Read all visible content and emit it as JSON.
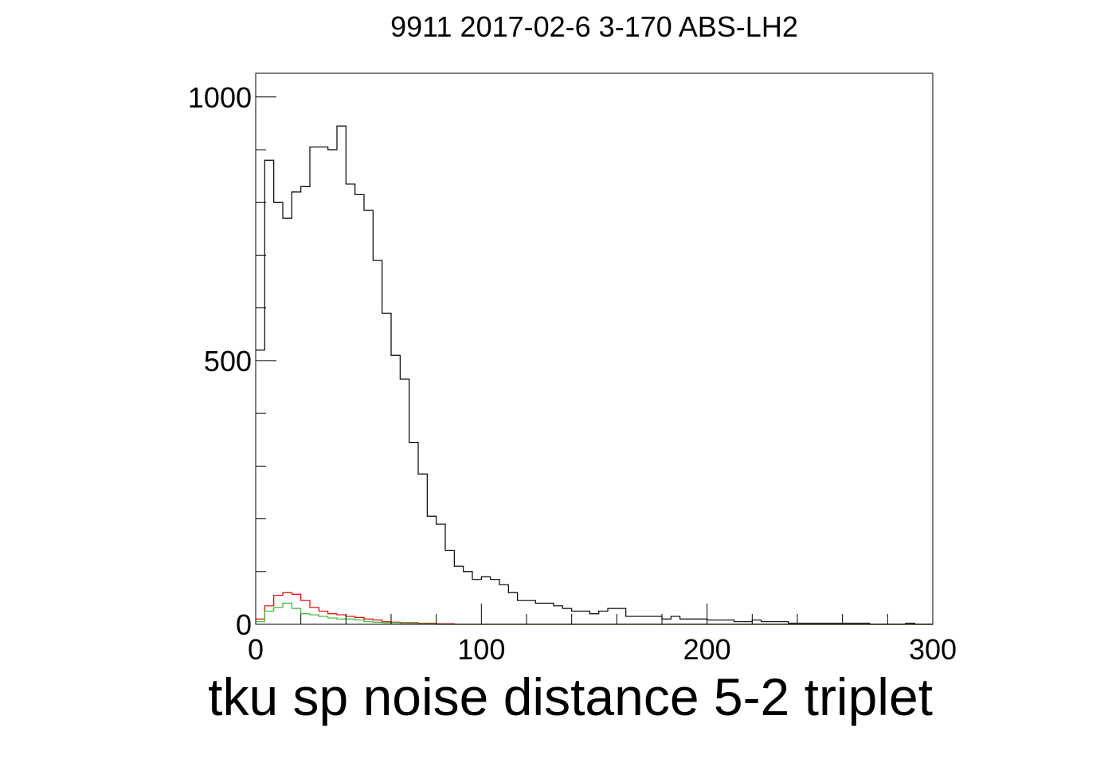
{
  "chart_data": {
    "type": "histogram",
    "title": "9911 2017-02-6 3-170 ABS-LH2",
    "xlabel": "tku sp noise distance 5-2 triplet",
    "ylabel": "",
    "xlim": [
      0,
      300
    ],
    "ylim": [
      0,
      1045
    ],
    "x_ticks": [
      "0",
      "100",
      "200",
      "300"
    ],
    "y_ticks": [
      "0",
      "500",
      "1000"
    ],
    "bin_width": 4,
    "legend": false,
    "grid": false,
    "series": [
      {
        "color": "#000000",
        "values": [
          520,
          880,
          800,
          770,
          820,
          830,
          905,
          905,
          900,
          945,
          835,
          815,
          785,
          690,
          590,
          510,
          465,
          345,
          285,
          205,
          190,
          140,
          110,
          100,
          85,
          90,
          85,
          75,
          60,
          45,
          45,
          40,
          40,
          35,
          30,
          25,
          25,
          20,
          25,
          30,
          30,
          15,
          15,
          15,
          15,
          10,
          15,
          10,
          10,
          10,
          8,
          8,
          8,
          5,
          5,
          8,
          5,
          5,
          5,
          2,
          2,
          2,
          2,
          2,
          2,
          2,
          2,
          2,
          0,
          0,
          0,
          0,
          2,
          0,
          0
        ]
      },
      {
        "color": "#e00000",
        "values": [
          10,
          35,
          55,
          60,
          57,
          45,
          32,
          25,
          20,
          18,
          15,
          13,
          10,
          8,
          5,
          4,
          3,
          3,
          2,
          2,
          1,
          1,
          0,
          0,
          0,
          0,
          0,
          0,
          0,
          0,
          0,
          0,
          0,
          0,
          0,
          0,
          0,
          0,
          0,
          0,
          0,
          0,
          0,
          0,
          0,
          0,
          0,
          0,
          0,
          0,
          0,
          0,
          0,
          0,
          0,
          0,
          0,
          0,
          0,
          0,
          0,
          0,
          0,
          0,
          0,
          0,
          0,
          0,
          0,
          0,
          0,
          0,
          0,
          0,
          0
        ]
      },
      {
        "color": "#33bb33",
        "values": [
          5,
          25,
          32,
          40,
          30,
          20,
          18,
          15,
          12,
          10,
          10,
          8,
          5,
          4,
          3,
          3,
          2,
          2,
          1,
          1,
          0,
          0,
          0,
          0,
          0,
          0,
          0,
          0,
          0,
          0,
          0,
          0,
          0,
          0,
          0,
          0,
          0,
          0,
          0,
          0,
          0,
          0,
          0,
          0,
          0,
          0,
          0,
          0,
          0,
          0,
          0,
          0,
          0,
          0,
          0,
          0,
          0,
          0,
          0,
          0,
          0,
          0,
          0,
          0,
          0,
          0,
          0,
          0,
          0,
          0,
          0,
          0,
          0,
          0,
          0
        ]
      }
    ]
  }
}
